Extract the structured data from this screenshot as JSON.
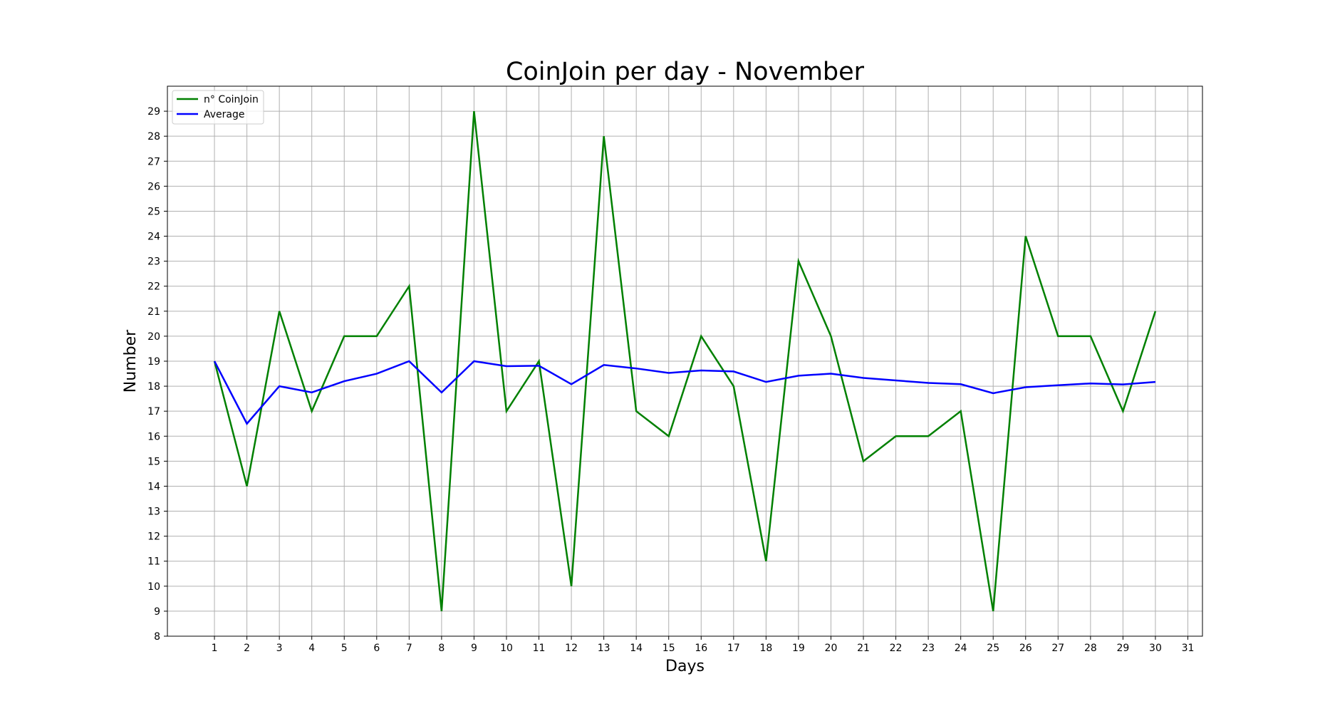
{
  "chart_data": {
    "type": "line",
    "title": "CoinJoin per day - November",
    "xlabel": "Days",
    "ylabel": "Number",
    "x": [
      1,
      2,
      3,
      4,
      5,
      6,
      7,
      8,
      9,
      10,
      11,
      12,
      13,
      14,
      15,
      16,
      17,
      18,
      19,
      20,
      21,
      22,
      23,
      24,
      25,
      26,
      27,
      28,
      29,
      30
    ],
    "x_ticks": [
      1,
      2,
      3,
      4,
      5,
      6,
      7,
      8,
      9,
      10,
      11,
      12,
      13,
      14,
      15,
      16,
      17,
      18,
      19,
      20,
      21,
      22,
      23,
      24,
      25,
      26,
      27,
      28,
      29,
      30,
      31
    ],
    "y_ticks": [
      8,
      9,
      10,
      11,
      12,
      13,
      14,
      15,
      16,
      17,
      18,
      19,
      20,
      21,
      22,
      23,
      24,
      25,
      26,
      27,
      28,
      29
    ],
    "xlim": [
      -0.45,
      31.45
    ],
    "ylim": [
      8,
      30
    ],
    "grid": true,
    "legend_position": "top-left",
    "series": [
      {
        "name": "n° CoinJoin",
        "color": "#008000",
        "values": [
          19,
          14,
          21,
          17,
          20,
          20,
          22,
          9,
          29,
          17,
          19,
          10,
          28,
          17,
          16,
          20,
          18,
          11,
          23,
          20,
          15,
          16,
          16,
          17,
          9,
          24,
          20,
          20,
          17,
          21
        ]
      },
      {
        "name": "Average",
        "color": "#0000ff",
        "values": [
          19,
          16.5,
          18,
          17.75,
          18.2,
          18.5,
          19,
          17.75,
          19,
          18.8,
          18.82,
          18.08,
          18.85,
          18.71,
          18.53,
          18.63,
          18.59,
          18.17,
          18.42,
          18.5,
          18.33,
          18.23,
          18.13,
          18.08,
          17.72,
          17.96,
          18.04,
          18.11,
          18.07,
          18.17
        ]
      }
    ]
  }
}
